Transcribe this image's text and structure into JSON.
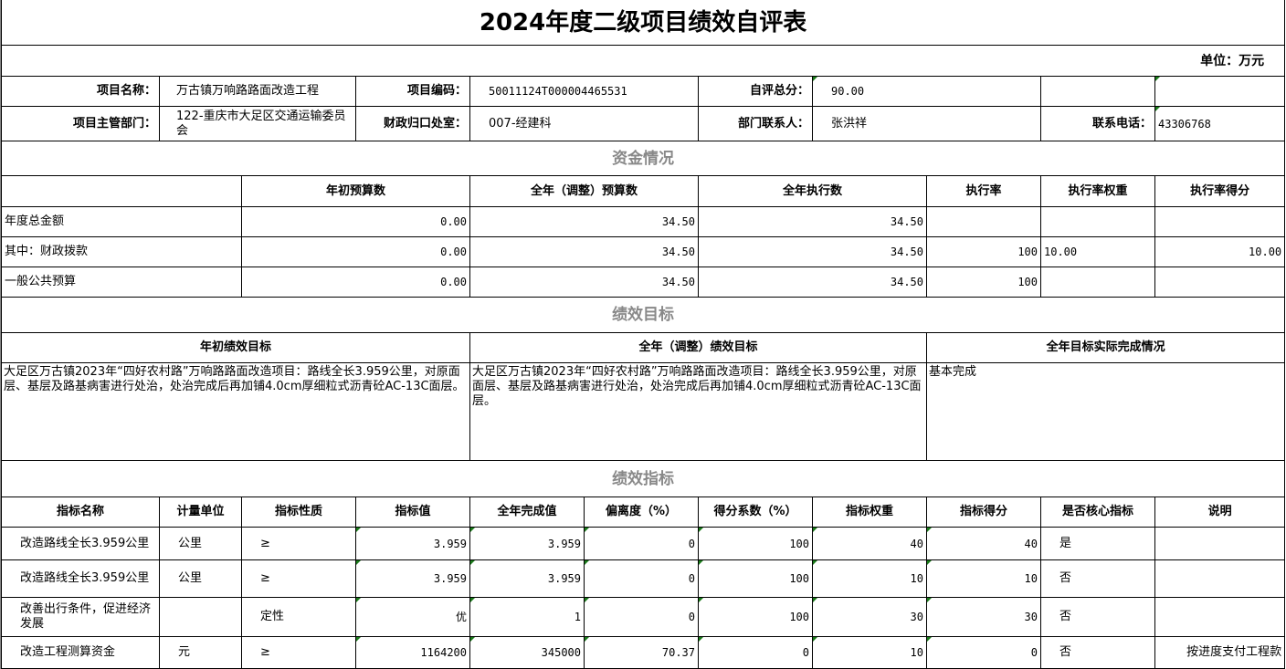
{
  "title": "2024年度二级项目绩效自评表",
  "unit": "单位：万元",
  "info": {
    "name_label": "项目名称：",
    "name": "万古镇万响路路面改造工程",
    "code_label": "项目编码：",
    "code": "50011124T000004465531",
    "score_label": "自评总分：",
    "score": "90.00",
    "dept_label": "项目主管部门：",
    "dept": "122-重庆市大足区交通运输委员会",
    "finance_label": "财政归口处室：",
    "finance": "007-经建科",
    "contact_label": "部门联系人：",
    "contact": "张洪祥",
    "phone_label": "联系电话：",
    "phone": "43306768"
  },
  "funds": {
    "section": "资金情况",
    "headers": [
      "",
      "年初预算数",
      "全年（调整）预算数",
      "全年执行数",
      "执行率",
      "执行率权重",
      "执行率得分"
    ],
    "rows": [
      [
        "年度总金额",
        "0.00",
        "34.50",
        "34.50",
        "",
        "",
        ""
      ],
      [
        "其中：财政拨款",
        "0.00",
        "34.50",
        "34.50",
        "100",
        "10.00",
        "10.00"
      ],
      [
        "一般公共预算",
        "0.00",
        "34.50",
        "34.50",
        "100",
        "",
        ""
      ]
    ]
  },
  "goals": {
    "section": "绩效目标",
    "headers": [
      "年初绩效目标",
      "全年（调整）绩效目标",
      "全年目标实际完成情况"
    ],
    "values": [
      "大足区万古镇2023年“四好农村路”万响路路面改造项目：路线全长3.959公里，对原面层、基层及路基病害进行处治，处治完成后再加铺4.0cm厚细粒式沥青砼AC-13C面层。",
      "大足区万古镇2023年“四好农村路”万响路路面改造项目：路线全长3.959公里，对原面层、基层及路基病害进行处治，处治完成后再加铺4.0cm厚细粒式沥青砼AC-13C面层。",
      "基本完成"
    ]
  },
  "indicators": {
    "section": "绩效指标",
    "headers": [
      "指标名称",
      "计量单位",
      "指标性质",
      "指标值",
      "全年完成值",
      "偏离度（%）",
      "得分系数（%）",
      "指标权重",
      "指标得分",
      "是否核心指标",
      "说明"
    ],
    "rows": [
      [
        "改造路线全长3.959公里",
        "公里",
        "≥",
        "3.959",
        "3.959",
        "0",
        "100",
        "40",
        "40",
        "是",
        ""
      ],
      [
        "改造路线全长3.959公里",
        "公里",
        "≥",
        "3.959",
        "3.959",
        "0",
        "100",
        "10",
        "10",
        "否",
        ""
      ],
      [
        "改善出行条件，促进经济发展",
        "",
        "定性",
        "优",
        "1",
        "0",
        "100",
        "30",
        "30",
        "否",
        ""
      ],
      [
        "改造工程测算资金",
        "元",
        "≥",
        "1164200",
        "345000",
        "70.37",
        "0",
        "10",
        "0",
        "否",
        "按进度支付工程款"
      ]
    ]
  }
}
